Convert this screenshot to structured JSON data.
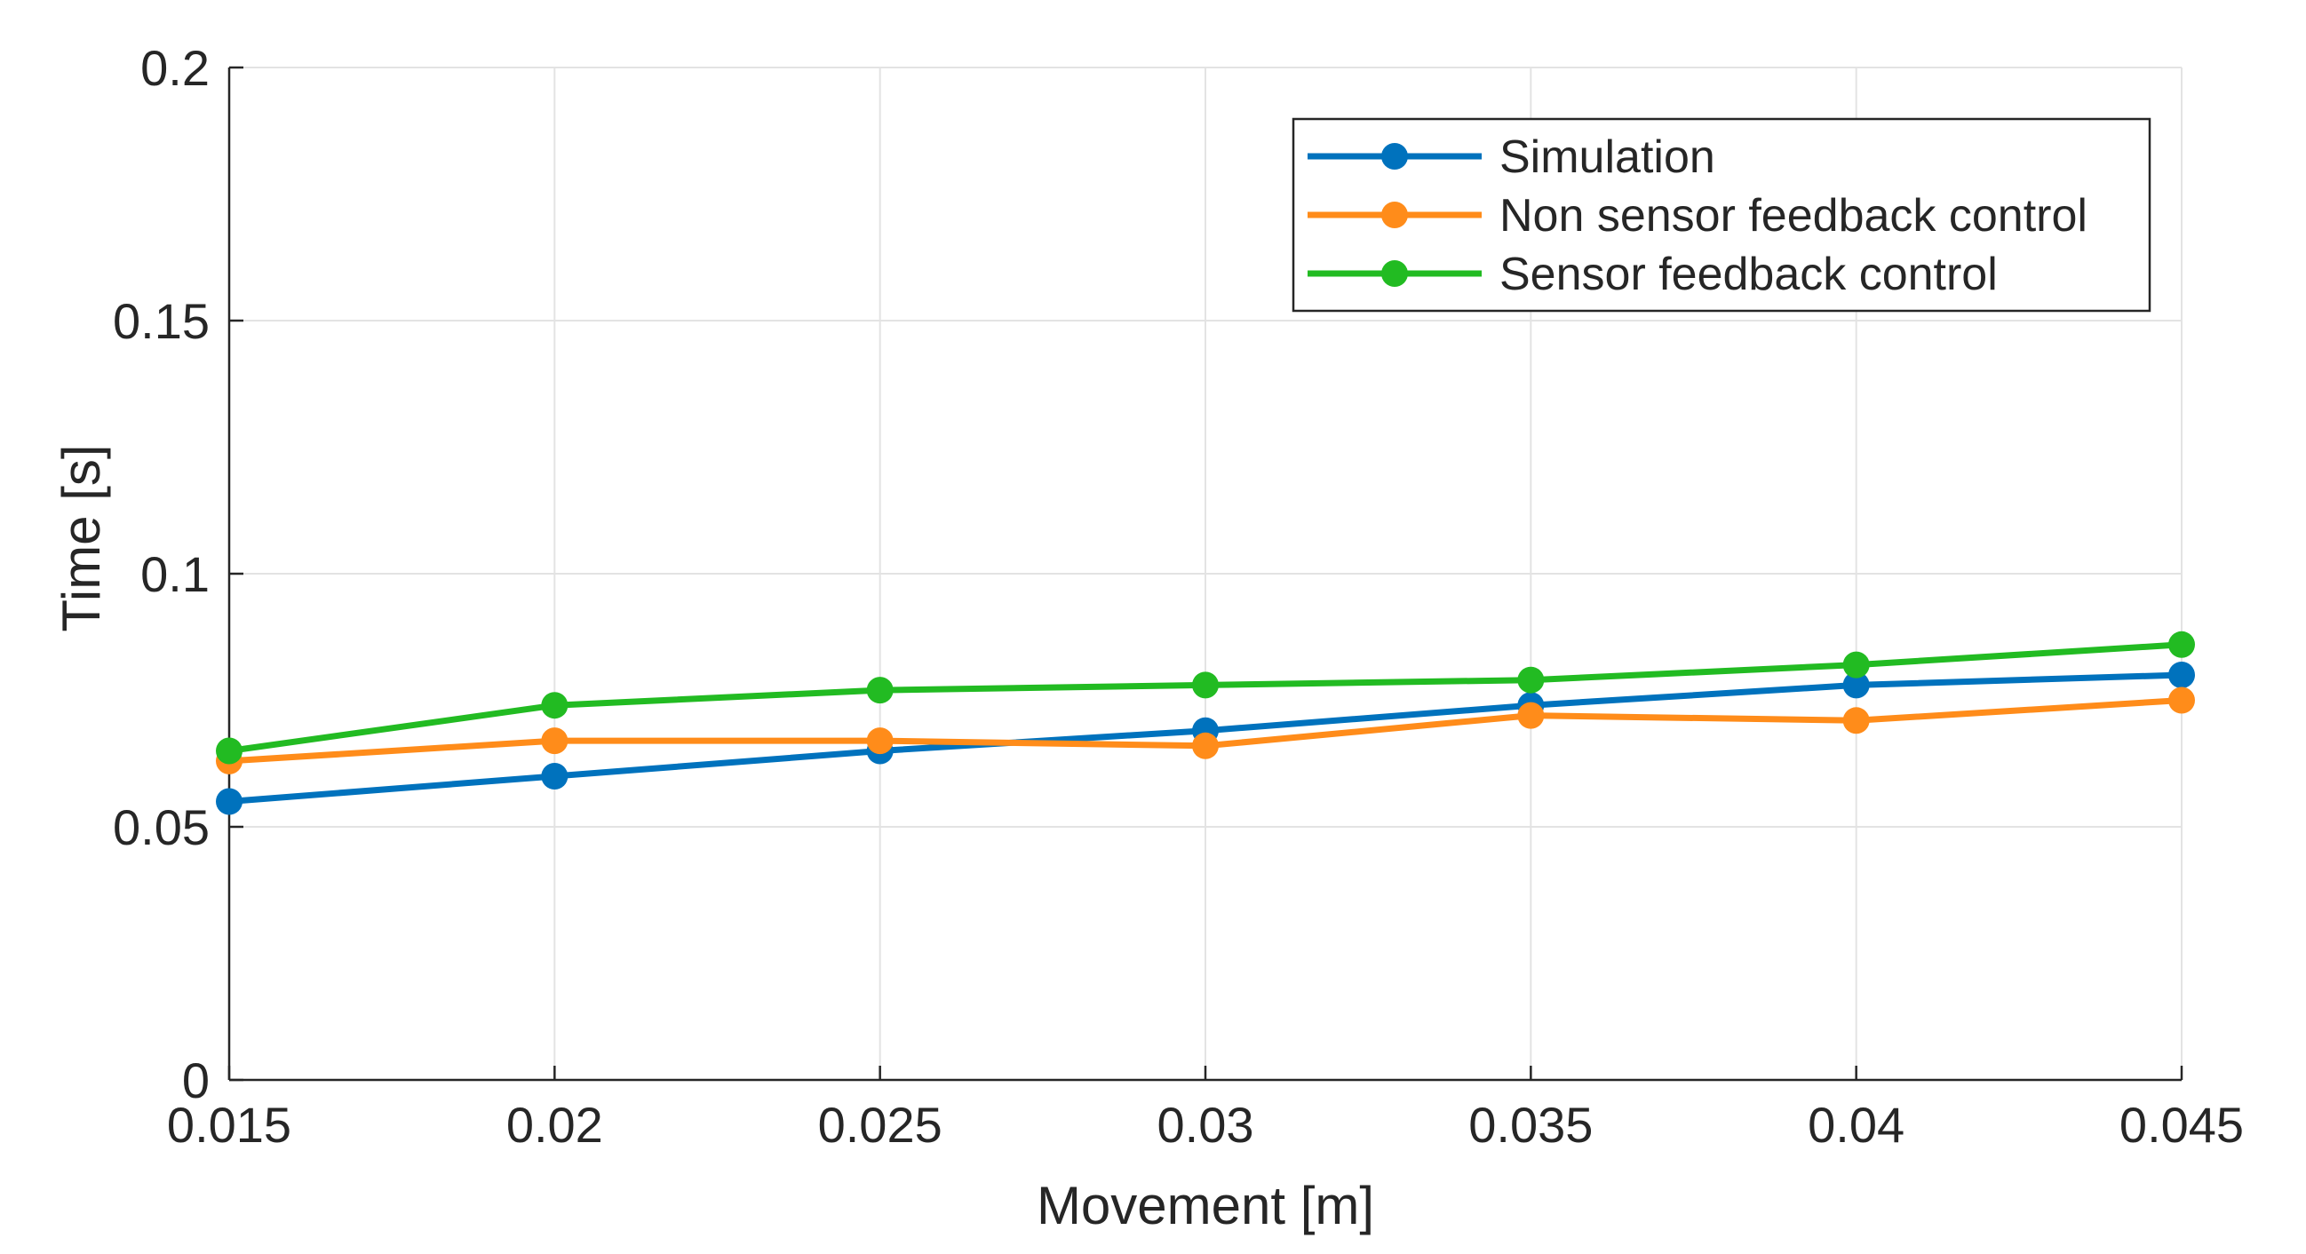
{
  "chart_data": {
    "type": "line",
    "title": "",
    "xlabel": "Movement [m]",
    "ylabel": "Time [s]",
    "xlim": [
      0.015,
      0.045
    ],
    "ylim": [
      0,
      0.2
    ],
    "xticks": [
      0.015,
      0.02,
      0.025,
      0.03,
      0.035,
      0.04,
      0.045
    ],
    "xtick_labels": [
      "0.015",
      "0.02",
      "0.025",
      "0.03",
      "0.035",
      "0.04",
      "0.045"
    ],
    "yticks": [
      0,
      0.05,
      0.1,
      0.15,
      0.2
    ],
    "ytick_labels": [
      "0",
      "0.05",
      "0.1",
      "0.15",
      "0.2"
    ],
    "grid": true,
    "legend_position": "top-right",
    "x": [
      0.015,
      0.02,
      0.025,
      0.03,
      0.035,
      0.04,
      0.045
    ],
    "series": [
      {
        "name": "Simulation",
        "color": "#0072BD",
        "values": [
          0.055,
          0.06,
          0.065,
          0.069,
          0.074,
          0.078,
          0.08
        ]
      },
      {
        "name": "Non sensor feedback control",
        "color": "#FF8C1A",
        "values": [
          0.063,
          0.067,
          0.067,
          0.066,
          0.072,
          0.071,
          0.075
        ]
      },
      {
        "name": "Sensor feedback control",
        "color": "#22BB22",
        "values": [
          0.065,
          0.074,
          0.077,
          0.078,
          0.079,
          0.082,
          0.086
        ]
      }
    ]
  }
}
